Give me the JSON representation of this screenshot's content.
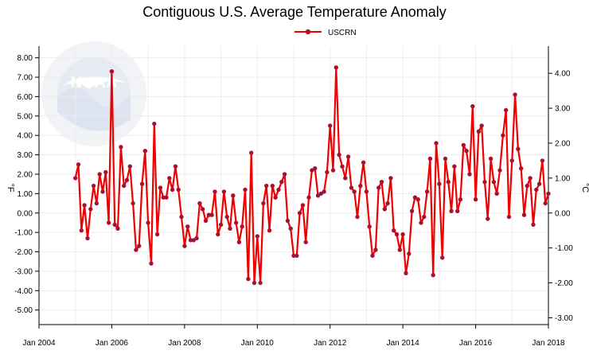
{
  "chart_data": {
    "type": "line",
    "title": "Contiguous U.S. Average Temperature Anomaly",
    "legend": {
      "position": "top-center",
      "entries": [
        "USCRN"
      ]
    },
    "series_color": "#ee0000",
    "marker_color": "#8a1a4a",
    "grid": true,
    "x_axis": {
      "start_year": 2004,
      "end_year": 2018,
      "ticks": [
        "Jan 2004",
        "Jan 2006",
        "Jan 2008",
        "Jan 2010",
        "Jan 2012",
        "Jan 2014",
        "Jan 2016",
        "Jan 2018"
      ]
    },
    "y_left": {
      "label": "°F",
      "range": [
        -5.75,
        8.6
      ],
      "ticks": [
        "8.00",
        "7.00",
        "6.00",
        "5.00",
        "4.00",
        "3.00",
        "2.00",
        "1.00",
        "0.00",
        "-1.00",
        "-2.00",
        "-3.00",
        "-4.00",
        "-5.00"
      ]
    },
    "y_right": {
      "label": "°C",
      "ticks": [
        "4.00",
        "3.00",
        "2.00",
        "1.00",
        "0.00",
        "-1.00",
        "-2.00",
        "-3.00"
      ]
    },
    "series": [
      {
        "name": "USCRN",
        "start": "Jan 2005",
        "unit": "°F",
        "values": [
          1.8,
          2.5,
          -0.9,
          0.4,
          -1.3,
          0.2,
          1.4,
          0.5,
          2.0,
          1.1,
          2.1,
          -0.5,
          7.3,
          -0.6,
          -0.8,
          3.4,
          1.4,
          1.7,
          2.4,
          0.5,
          -1.9,
          -1.7,
          1.5,
          3.2,
          -0.5,
          -2.6,
          4.6,
          -1.1,
          1.3,
          0.8,
          0.8,
          1.8,
          1.2,
          2.4,
          1.2,
          -0.2,
          -1.7,
          -0.7,
          -1.4,
          -1.4,
          -1.3,
          0.5,
          0.2,
          -0.4,
          -0.1,
          -0.1,
          1.1,
          -1.1,
          -0.6,
          1.1,
          -0.2,
          -0.8,
          0.9,
          -0.5,
          -1.5,
          -0.7,
          1.2,
          -3.4,
          3.1,
          -3.6,
          -1.2,
          -3.6,
          0.5,
          1.4,
          -0.9,
          1.4,
          0.8,
          1.2,
          1.6,
          2.0,
          -0.4,
          -0.8,
          -2.2,
          -2.2,
          0.0,
          0.4,
          -1.5,
          0.8,
          2.2,
          2.3,
          0.9,
          1.0,
          1.1,
          2.1,
          4.5,
          2.2,
          7.5,
          3.0,
          2.4,
          1.8,
          2.9,
          1.3,
          1.1,
          -0.2,
          1.4,
          2.6,
          1.1,
          -0.7,
          -2.2,
          -1.9,
          1.3,
          1.6,
          0.2,
          0.5,
          1.8,
          -0.9,
          -1.1,
          -1.9,
          -1.1,
          -3.1,
          -2.1,
          0.1,
          0.8,
          0.7,
          -0.5,
          -0.2,
          1.1,
          2.8,
          -3.2,
          3.6,
          1.5,
          -2.3,
          2.8,
          1.6,
          0.1,
          2.4,
          0.1,
          0.7,
          3.5,
          3.2,
          2.0,
          5.5,
          0.7,
          4.2,
          4.5,
          1.6,
          -0.3,
          2.8,
          1.6,
          1.0,
          2.2,
          4.0,
          5.3,
          -0.2,
          2.7,
          6.1,
          3.3,
          2.3,
          -0.1,
          1.4,
          1.8,
          -0.6,
          1.2,
          1.5,
          2.7,
          0.5,
          1.0
        ]
      }
    ]
  }
}
